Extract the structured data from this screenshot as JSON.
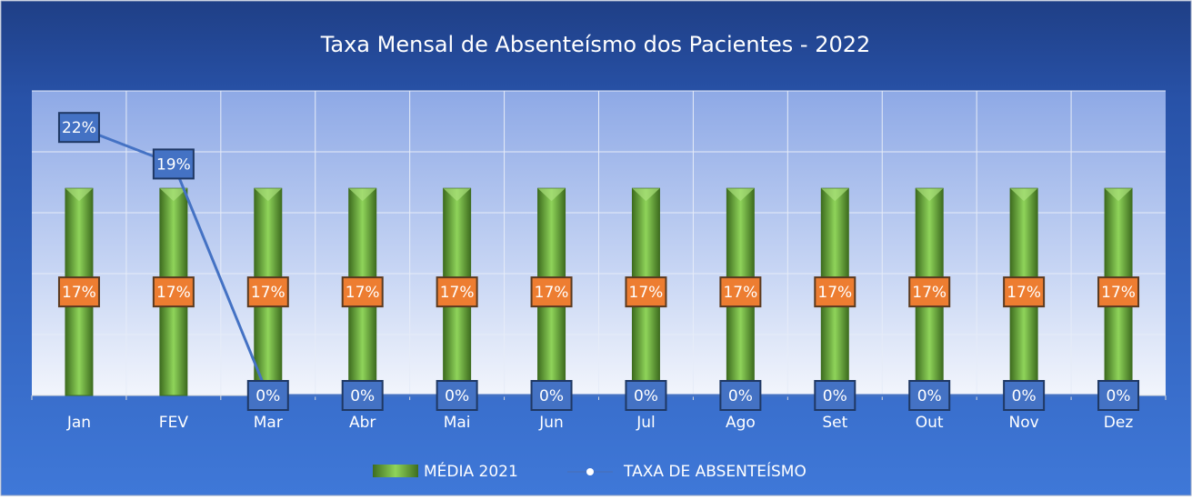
{
  "chart_data": {
    "type": "bar_line",
    "title": "Taxa Mensal de Absenteísmo dos Pacientes - 2022",
    "categories": [
      "Jan",
      "FEV",
      "Mar",
      "Abr",
      "Mai",
      "Jun",
      "Jul",
      "Ago",
      "Set",
      "Out",
      "Nov",
      "Dez"
    ],
    "series": [
      {
        "name": "MÉDIA 2021",
        "type": "bar",
        "color": "#70ad47",
        "values": [
          17,
          17,
          17,
          17,
          17,
          17,
          17,
          17,
          17,
          17,
          17,
          17
        ],
        "value_labels": [
          "17%",
          "17%",
          "17%",
          "17%",
          "17%",
          "17%",
          "17%",
          "17%",
          "17%",
          "17%",
          "17%",
          "17%"
        ]
      },
      {
        "name": "TAXA DE ABSENTEÍSMO",
        "type": "line",
        "color": "#4472c4",
        "values": [
          22,
          19,
          0,
          0,
          0,
          0,
          0,
          0,
          0,
          0,
          0,
          0
        ],
        "value_labels": [
          "22%",
          "19%",
          "0%",
          "0%",
          "0%",
          "0%",
          "0%",
          "0%",
          "0%",
          "0%",
          "0%",
          "0%"
        ]
      }
    ],
    "ylim": [
      0,
      25
    ],
    "yticks": [
      0,
      5,
      10,
      15,
      20,
      25
    ],
    "grid": true,
    "legend": "bottom"
  }
}
